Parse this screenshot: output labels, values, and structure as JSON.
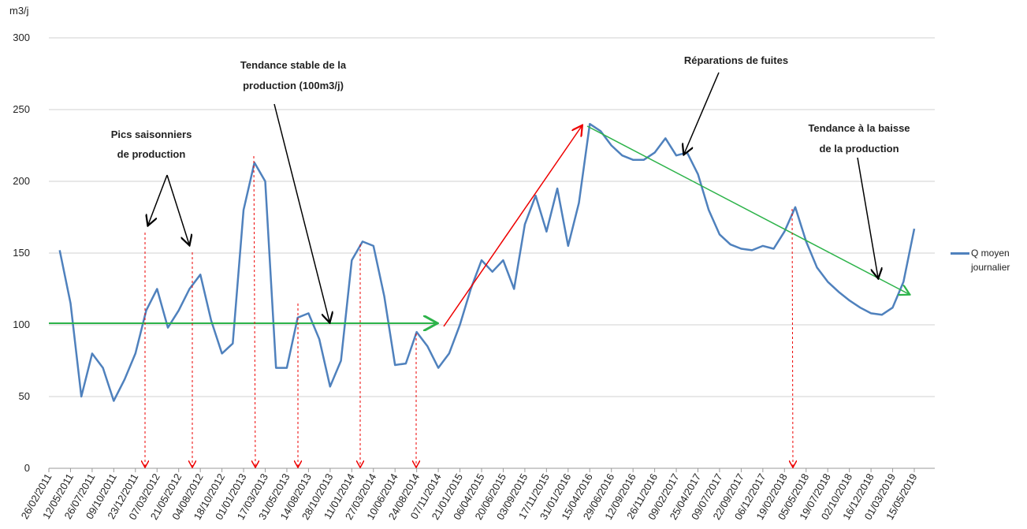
{
  "chart_data": {
    "type": "line",
    "y_label": "m3/j",
    "categories": [
      "26/02/2011",
      null,
      "12/05/2011",
      null,
      "26/07/2011",
      null,
      "09/10/2011",
      null,
      "23/12/2011",
      null,
      "07/03/2012",
      null,
      "21/05/2012",
      null,
      "04/08/2012",
      null,
      "18/10/2012",
      null,
      "01/01/2013",
      null,
      "17/03/2013",
      null,
      "31/05/2013",
      null,
      "14/08/2013",
      null,
      "28/10/2013",
      null,
      "11/01/2014",
      null,
      "27/03/2014",
      null,
      "10/06/2014",
      null,
      "24/08/2014",
      null,
      "07/11/2014",
      null,
      "21/01/2015",
      null,
      "06/04/2015",
      null,
      "20/06/2015",
      null,
      "03/09/2015",
      null,
      "17/11/2015",
      null,
      "31/01/2016",
      null,
      "15/04/2016",
      null,
      "29/06/2016",
      null,
      "12/09/2016",
      null,
      "26/11/2016",
      null,
      "09/02/2017",
      null,
      "25/04/2017",
      null,
      "09/07/2017",
      null,
      "22/09/2017",
      null,
      "06/12/2017",
      null,
      "19/02/2018",
      null,
      "05/05/2018",
      null,
      "19/07/2018",
      null,
      "02/10/2018",
      null,
      "16/12/2018",
      null,
      "01/03/2019",
      null,
      "15/05/2019"
    ],
    "series": [
      {
        "name": "Q moyen journalier",
        "color": "#4f81bd",
        "values": [
          null,
          152,
          115,
          50,
          80,
          70,
          47,
          62,
          80,
          110,
          125,
          98,
          110,
          125,
          135,
          103,
          80,
          87,
          180,
          213,
          200,
          70,
          70,
          105,
          108,
          90,
          57,
          75,
          145,
          158,
          155,
          120,
          72,
          73,
          95,
          85,
          70,
          80,
          100,
          125,
          145,
          137,
          145,
          125,
          170,
          190,
          165,
          195,
          155,
          185,
          240,
          235,
          225,
          218,
          215,
          215,
          220,
          230,
          218,
          220,
          205,
          180,
          163,
          156,
          153,
          152,
          155,
          153,
          165,
          182,
          158,
          140,
          130,
          123,
          117,
          112,
          108,
          107,
          112,
          130,
          167
        ]
      }
    ],
    "ylim": [
      0,
      300
    ],
    "yticks": [
      0,
      50,
      100,
      150,
      200,
      250,
      300
    ],
    "grid": true,
    "legend": "right",
    "annotations": [
      "Pics saisonniers",
      "de production",
      "Tendance  stable de la",
      "production (100m3/j)",
      "Réparations de fuites",
      "Tendance à la baisse",
      "de la production"
    ]
  }
}
